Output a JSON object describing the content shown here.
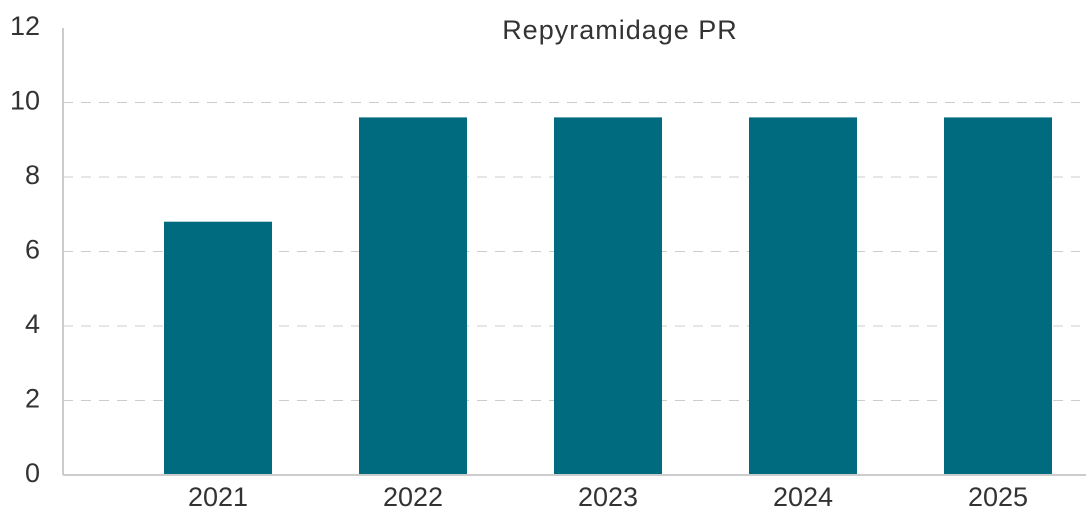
{
  "chart_data": {
    "type": "bar",
    "title": "Repyramidage PR",
    "categories": [
      "2021",
      "2022",
      "2023",
      "2024",
      "2025"
    ],
    "values": [
      6.8,
      9.6,
      9.6,
      9.6,
      9.6
    ],
    "color": "#006b7f",
    "ylim": [
      0,
      12
    ],
    "yticks": [
      0,
      2,
      4,
      6,
      8,
      10,
      12
    ],
    "grid": true
  }
}
